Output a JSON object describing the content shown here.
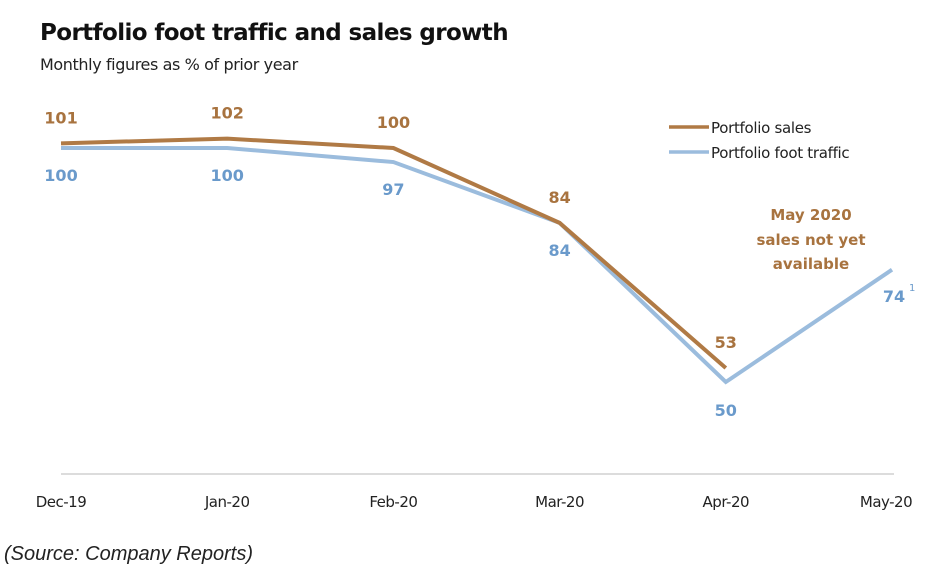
{
  "chart_data": {
    "type": "line",
    "title": "Portfolio foot traffic and sales growth",
    "subtitle": "Monthly figures as % of prior year",
    "xlabel": "",
    "ylabel": "",
    "categories": [
      "Dec-19",
      "Jan-20",
      "Feb-20",
      "Mar-20",
      "Apr-20",
      "May-20"
    ],
    "series": [
      {
        "name": "Portfolio sales",
        "color": "#b07a45",
        "label_color": "#a8733f",
        "values": [
          101,
          102,
          100,
          84,
          53,
          null
        ],
        "labels": [
          "101",
          "102",
          "100",
          "84",
          "53",
          ""
        ]
      },
      {
        "name": "Portfolio foot traffic",
        "color": "#9bbcdd",
        "label_color": "#6a9acb",
        "values": [
          100,
          100,
          97,
          84,
          50,
          74
        ],
        "labels": [
          "100",
          "100",
          "97",
          "84",
          "50",
          "74"
        ]
      }
    ],
    "footnote_marker": "1",
    "annotation": [
      "May 2020",
      "sales not yet",
      "available"
    ],
    "grid": false,
    "legend": "top-right",
    "ylim": [
      30,
      110
    ]
  },
  "source": "(Source: Company Reports)"
}
